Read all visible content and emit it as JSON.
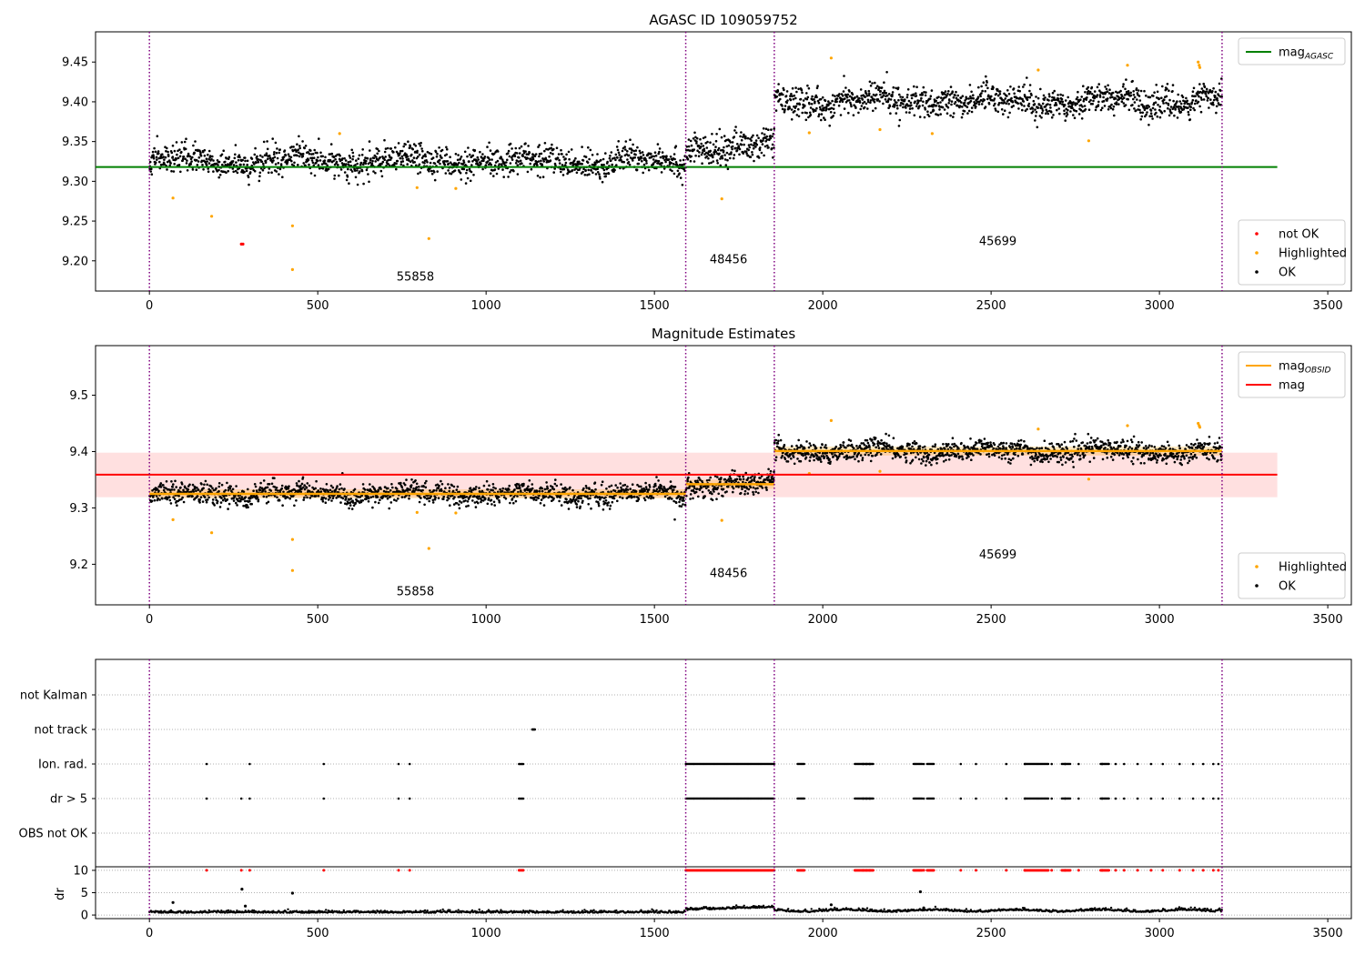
{
  "figure": {
    "title": "AGASC ID 109059752"
  },
  "chart_data": [
    {
      "type": "scatter",
      "title": "AGASC ID 109059752",
      "xlim": [
        -160,
        3570
      ],
      "ylim": [
        9.162,
        9.488
      ],
      "xticks": [
        0,
        500,
        1000,
        1500,
        2000,
        2500,
        3000,
        3500
      ],
      "yticks": [
        9.2,
        9.25,
        9.3,
        9.35,
        9.4,
        9.45
      ],
      "ytick_labels": [
        "9.20",
        "9.25",
        "9.30",
        "9.35",
        "9.40",
        "9.45"
      ],
      "obsid_boundaries": [
        0,
        1593,
        1856,
        3186
      ],
      "obsid_labels": [
        {
          "text": "55858",
          "x": 790,
          "y": 9.175
        },
        {
          "text": "48456",
          "x": 1720,
          "y": 9.197
        },
        {
          "text": "45699",
          "x": 2520,
          "y": 9.22
        }
      ],
      "reference_line": {
        "name": "mag_AGASC",
        "y": 9.318,
        "x_range": [
          -160,
          3350
        ],
        "color": "#008000"
      },
      "ok_segments": [
        {
          "x0": 0,
          "x1": 1593,
          "mean": 9.325,
          "spread": 0.012,
          "count": 1350
        },
        {
          "x0": 1593,
          "x1": 1856,
          "mean": 9.342,
          "spread": 0.013,
          "count": 230
        },
        {
          "x0": 1856,
          "x1": 3186,
          "mean": 9.401,
          "spread": 0.012,
          "count": 1150
        }
      ],
      "highlighted": {
        "x": [
          70,
          185,
          425,
          425,
          565,
          795,
          830,
          910,
          1700,
          1960,
          2025,
          2170,
          2325,
          2640,
          2790,
          2905,
          3115,
          3118,
          3120
        ],
        "y": [
          9.279,
          9.256,
          9.244,
          9.189,
          9.36,
          9.292,
          9.228,
          9.291,
          9.278,
          9.361,
          9.455,
          9.365,
          9.36,
          9.44,
          9.351,
          9.446,
          9.45,
          9.446,
          9.443
        ]
      },
      "not_ok": {
        "x": [
          273,
          278
        ],
        "y": [
          9.221,
          9.221
        ]
      },
      "legends": [
        {
          "position": "upper-right",
          "entries": [
            {
              "label": "mag",
              "subscript": "AGASC",
              "type": "line",
              "color": "#008000"
            }
          ]
        },
        {
          "position": "lower-right",
          "entries": [
            {
              "label": "not OK",
              "type": "point",
              "color": "#ff0000"
            },
            {
              "label": "Highlighted",
              "type": "point",
              "color": "#ffa500"
            },
            {
              "label": "OK",
              "type": "point",
              "color": "#000000"
            }
          ]
        }
      ]
    },
    {
      "type": "scatter",
      "title": "Magnitude Estimates",
      "xlim": [
        -160,
        3570
      ],
      "ylim": [
        9.128,
        9.588
      ],
      "xticks": [
        0,
        500,
        1000,
        1500,
        2000,
        2500,
        3000,
        3500
      ],
      "yticks": [
        9.2,
        9.3,
        9.4,
        9.5
      ],
      "ytick_labels": [
        "9.2",
        "9.3",
        "9.4",
        "9.5"
      ],
      "obsid_boundaries": [
        0,
        1593,
        1856,
        3186
      ],
      "obsid_labels": [
        {
          "text": "55858",
          "x": 790,
          "y": 9.145
        },
        {
          "text": "48456",
          "x": 1720,
          "y": 9.177
        },
        {
          "text": "45699",
          "x": 2520,
          "y": 9.21
        }
      ],
      "mag_line": {
        "name": "mag",
        "y": 9.359,
        "band": [
          9.319,
          9.398
        ],
        "x_range": [
          -160,
          3350
        ],
        "color": "#ff0000"
      },
      "obsid_mags": [
        {
          "x0": 0,
          "x1": 1593,
          "mag": 9.325
        },
        {
          "x0": 1593,
          "x1": 1856,
          "mag": 9.342
        },
        {
          "x0": 1856,
          "x1": 3186,
          "mag": 9.401
        }
      ],
      "highlighted": {
        "x": [
          70,
          185,
          425,
          425,
          795,
          830,
          910,
          1700,
          1960,
          2025,
          2170,
          2640,
          2790,
          2905,
          3115,
          3118,
          3120
        ],
        "y": [
          9.279,
          9.256,
          9.244,
          9.189,
          9.292,
          9.228,
          9.291,
          9.278,
          9.361,
          9.455,
          9.365,
          9.44,
          9.351,
          9.446,
          9.45,
          9.446,
          9.443
        ]
      },
      "legends": [
        {
          "position": "upper-right",
          "entries": [
            {
              "label": "mag",
              "subscript": "OBSID",
              "type": "line",
              "color": "#ffa500"
            },
            {
              "label": "mag",
              "subscript": "",
              "type": "line",
              "color": "#ff0000"
            }
          ]
        },
        {
          "position": "lower-right",
          "entries": [
            {
              "label": "Highlighted",
              "type": "point",
              "color": "#ffa500"
            },
            {
              "label": "OK",
              "type": "point",
              "color": "#000000"
            }
          ]
        }
      ]
    },
    {
      "type": "scatter",
      "title": "",
      "xlim": [
        -160,
        3570
      ],
      "xticks": [
        0,
        500,
        1000,
        1500,
        2000,
        2500,
        3000,
        3500
      ],
      "obsid_boundaries": [
        0,
        1593,
        1856,
        3186
      ],
      "flag_categories": [
        "not Kalman",
        "not track",
        "Ion. rad.",
        "dr > 5",
        "OBS not OK"
      ],
      "flag_events": {
        "not track": {
          "x": [
            1137,
            1139,
            1141,
            1143,
            1145
          ]
        },
        "Ion. rad.": {
          "x": [
            170,
            298,
            518,
            740,
            773,
            1098,
            1102,
            1106,
            1110,
            2120,
            2130,
            2140,
            2300,
            2410,
            2455,
            2545,
            2600,
            2680,
            2720,
            2760,
            2830,
            2870,
            2895,
            2935,
            2975,
            3010,
            3060,
            3100,
            3130,
            3160,
            3175
          ]
        },
        "dr > 5": {
          "x": [
            170,
            273,
            298,
            518,
            740,
            773,
            1098,
            1102,
            1106,
            1110,
            2120,
            2130,
            2140,
            2300,
            2410,
            2455,
            2545,
            2600,
            2680,
            2720,
            2760,
            2830,
            2870,
            2895,
            2935,
            2975,
            3010,
            3060,
            3100,
            3130,
            3160,
            3175
          ]
        },
        "dense_ranges": [
          [
            1593,
            1856
          ],
          [
            1925,
            1945
          ],
          [
            2095,
            2150
          ],
          [
            2270,
            2295
          ],
          [
            2310,
            2330
          ],
          [
            2600,
            2670
          ],
          [
            2710,
            2735
          ],
          [
            2825,
            2850
          ]
        ]
      }
    },
    {
      "type": "scatter",
      "title": "",
      "ylabel": "dr",
      "xlim": [
        -160,
        3570
      ],
      "ylim": [
        -0.8,
        10.8
      ],
      "xticks": [
        0,
        500,
        1000,
        1500,
        2000,
        2500,
        3000,
        3500
      ],
      "yticks": [
        0,
        5,
        10
      ],
      "ytick_labels": [
        "0",
        "5",
        "10"
      ],
      "obsid_boundaries": [
        0,
        1593,
        1856,
        3186
      ],
      "outliers": {
        "x": [
          70,
          275,
          285,
          425,
          2025,
          2290,
          2300
        ],
        "y": [
          2.8,
          5.8,
          2.0,
          4.9,
          2.3,
          5.2,
          1.6
        ]
      },
      "clipped_marker_y": 10
    }
  ]
}
